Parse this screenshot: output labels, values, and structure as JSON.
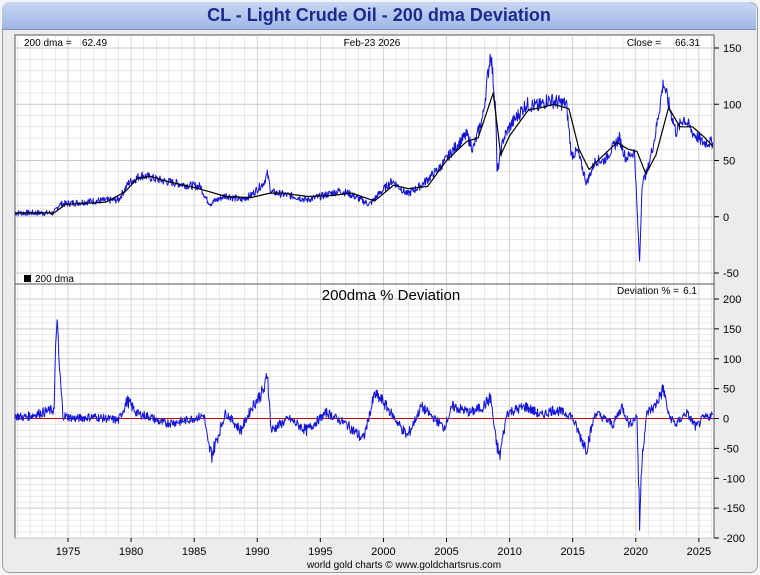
{
  "title": "CL  -  Light Crude Oil - 200 dma Deviation",
  "footer": "world gold charts © www.goldchartsrus.com",
  "colors": {
    "price": "#1414d8",
    "dma": "#000000",
    "zero_line": "#cc0000",
    "grid": "#c9c9c9",
    "title_text": "#1c2b8c"
  },
  "chart_data": [
    {
      "type": "line",
      "panel": "price",
      "info_left_label": "200 dma =",
      "info_left_value": "62.49",
      "info_center": "Feb-23  2026",
      "info_right_label": "Close =",
      "info_right_value": "66.31",
      "legend": "200 dma",
      "ylim": [
        -50,
        150
      ],
      "yticks": [
        -50,
        0,
        50,
        100,
        150
      ],
      "xlim": [
        1970.8,
        2026.2
      ],
      "grid": true,
      "series": [
        {
          "role": "price",
          "x": [
            1970.8,
            1973.9,
            1974.3,
            1977,
            1979,
            1979.8,
            1980.8,
            1981.5,
            1982.5,
            1983.5,
            1984.5,
            1985.5,
            1986.0,
            1986.3,
            1987.5,
            1988.7,
            1989.5,
            1990.5,
            1990.8,
            1991.1,
            1992,
            1993,
            1993.9,
            1995,
            1996.5,
            1997.2,
            1998.9,
            1999.8,
            2000.7,
            2001.9,
            2003,
            2004.5,
            2005.7,
            2006.6,
            2007.1,
            2007.9,
            2008.5,
            2008.9,
            2009.0,
            2009.5,
            2010,
            2011.3,
            2012.3,
            2013,
            2014.5,
            2014.9,
            2015.4,
            2016.1,
            2016.8,
            2017.5,
            2018.7,
            2019.2,
            2019.9,
            2020.3,
            2020.5,
            2020.9,
            2021.5,
            2022.2,
            2022.5,
            2023.2,
            2023.8,
            2024.5,
            2025.3,
            2026.1
          ],
          "y": [
            3.4,
            3.4,
            11,
            14,
            15,
            30,
            37,
            35,
            32,
            30,
            28,
            27,
            15,
            12,
            19,
            15,
            19,
            30,
            38,
            22,
            20,
            18,
            15,
            18,
            23,
            21,
            11,
            22,
            32,
            20,
            28,
            44,
            62,
            73,
            60,
            90,
            147,
            95,
            38,
            69,
            80,
            100,
            98,
            104,
            100,
            55,
            58,
            30,
            50,
            50,
            70,
            52,
            58,
            -41,
            30,
            40,
            70,
            120,
            105,
            75,
            88,
            75,
            66,
            66
          ]
        },
        {
          "role": "200 dma",
          "x": [
            1970.8,
            1973.9,
            1974.8,
            1978,
            1979.5,
            1980.5,
            1981.5,
            1983,
            1985,
            1986.3,
            1987.5,
            1989.5,
            1991,
            1992,
            1994,
            1996,
            1997.5,
            1999.3,
            2000.8,
            2002,
            2003.5,
            2005,
            2006.6,
            2007.5,
            2008.7,
            2009.3,
            2010,
            2011.5,
            2012.5,
            2013.5,
            2014.7,
            2015.5,
            2016.3,
            2017,
            2018.5,
            2019.4,
            2020.1,
            2020.8,
            2021.6,
            2022.6,
            2023.5,
            2024.5,
            2025.5,
            2026.1
          ],
          "y": [
            3.4,
            3.4,
            11,
            13,
            22,
            34,
            36,
            31,
            26,
            22,
            18,
            17,
            21,
            21,
            18,
            19,
            21,
            14,
            28,
            25,
            27,
            50,
            67,
            70,
            110,
            55,
            72,
            95,
            97,
            100,
            96,
            60,
            42,
            50,
            66,
            60,
            58,
            38,
            55,
            97,
            80,
            80,
            70,
            62.49
          ]
        }
      ]
    },
    {
      "type": "line",
      "panel": "deviation",
      "title": "200dma  %  Deviation",
      "info_right_label": "Deviation % =",
      "info_right_value": "6.1",
      "ylim": [
        -200,
        200
      ],
      "yticks": [
        -200,
        -150,
        -100,
        -50,
        0,
        50,
        100,
        150,
        200
      ],
      "xlim": [
        1970.8,
        2026.2
      ],
      "xticks": [
        1975,
        1980,
        1985,
        1990,
        1995,
        2000,
        2005,
        2010,
        2015,
        2020,
        2025
      ],
      "grid": true,
      "reference_line": 0,
      "series": [
        {
          "role": "deviation",
          "x": [
            1970.8,
            1971.5,
            1973.9,
            1974.1,
            1974.3,
            1974.6,
            1975.5,
            1977,
            1979,
            1979.7,
            1980.5,
            1981.5,
            1982.5,
            1984,
            1985.8,
            1986.1,
            1986.4,
            1987.5,
            1988.7,
            1989.6,
            1990.6,
            1990.8,
            1991.1,
            1992.5,
            1993.9,
            1995.5,
            1997.1,
            1998.4,
            1999.3,
            1999.9,
            2001.9,
            2003,
            2004.8,
            2005.5,
            2006.9,
            2007.9,
            2008.5,
            2008.9,
            2009.2,
            2009.8,
            2011.3,
            2012.5,
            2013.5,
            2014.9,
            2015.6,
            2016.1,
            2016.8,
            2018.2,
            2018.9,
            2019.5,
            2020.1,
            2020.3,
            2020.5,
            2020.9,
            2021.5,
            2022.2,
            2022.6,
            2023.2,
            2024,
            2024.8,
            2025.3,
            2026.1
          ],
          "y": [
            5,
            2,
            15,
            170,
            90,
            5,
            0,
            3,
            -3,
            30,
            8,
            3,
            -8,
            -5,
            5,
            -45,
            -60,
            10,
            -20,
            20,
            50,
            80,
            -20,
            0,
            -20,
            10,
            -10,
            -35,
            40,
            30,
            -30,
            20,
            -15,
            20,
            10,
            20,
            35,
            -35,
            -65,
            10,
            20,
            5,
            15,
            5,
            -30,
            -50,
            10,
            -10,
            20,
            -10,
            5,
            -175,
            -60,
            10,
            20,
            50,
            5,
            -10,
            10,
            -15,
            0,
            6.1
          ]
        }
      ]
    }
  ]
}
